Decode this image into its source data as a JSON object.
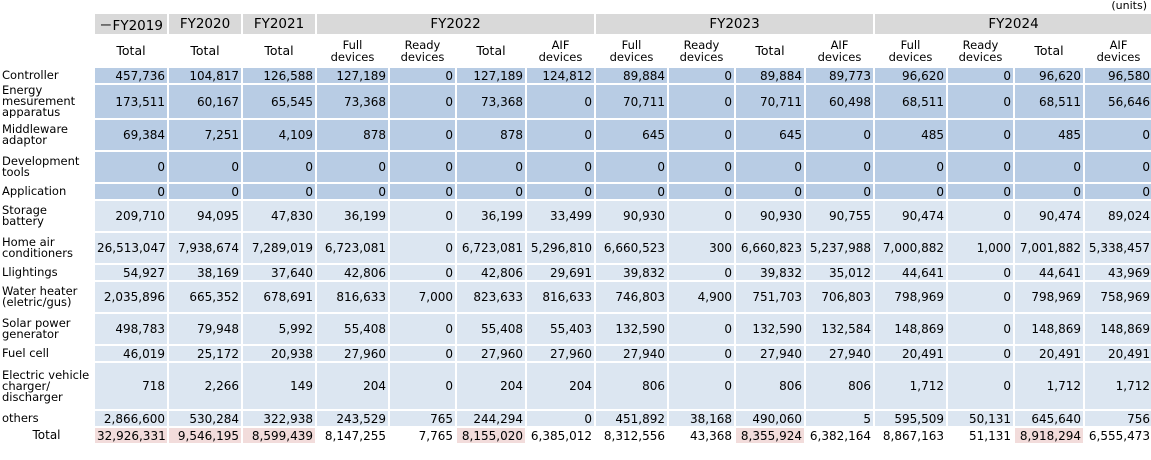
{
  "units_label": "(units)",
  "header": {
    "groups": [
      "－FY2019",
      "FY2020",
      "FY2021",
      "FY2022",
      "FY2023",
      "FY2024"
    ],
    "sub": {
      "total": "Total",
      "full": "Full devices",
      "ready": "Ready devices",
      "aif": "AIF devices"
    }
  },
  "rows": [
    {
      "label": "Controller",
      "values": [
        "457,736",
        "104,817",
        "126,588",
        "127,189",
        "0",
        "127,189",
        "124,812",
        "89,884",
        "0",
        "89,884",
        "89,773",
        "96,620",
        "0",
        "96,620",
        "96,580"
      ]
    },
    {
      "label": "Energy mesurement apparatus",
      "values": [
        "173,511",
        "60,167",
        "65,545",
        "73,368",
        "0",
        "73,368",
        "0",
        "70,711",
        "0",
        "70,711",
        "60,498",
        "68,511",
        "0",
        "68,511",
        "56,646"
      ]
    },
    {
      "label": "Middleware adaptor",
      "values": [
        "69,384",
        "7,251",
        "4,109",
        "878",
        "0",
        "878",
        "0",
        "645",
        "0",
        "645",
        "0",
        "485",
        "0",
        "485",
        "0"
      ]
    },
    {
      "label": "Development tools",
      "values": [
        "0",
        "0",
        "0",
        "0",
        "0",
        "0",
        "0",
        "0",
        "0",
        "0",
        "0",
        "0",
        "0",
        "0",
        "0"
      ]
    },
    {
      "label": "Application",
      "values": [
        "0",
        "0",
        "0",
        "0",
        "0",
        "0",
        "0",
        "0",
        "0",
        "0",
        "0",
        "0",
        "0",
        "0",
        "0"
      ]
    },
    {
      "label": "Storage battery",
      "values": [
        "209,710",
        "94,095",
        "47,830",
        "36,199",
        "0",
        "36,199",
        "33,499",
        "90,930",
        "0",
        "90,930",
        "90,755",
        "90,474",
        "0",
        "90,474",
        "89,024"
      ]
    },
    {
      "label": "Home air conditioners",
      "values": [
        "26,513,047",
        "7,938,674",
        "7,289,019",
        "6,723,081",
        "0",
        "6,723,081",
        "5,296,810",
        "6,660,523",
        "300",
        "6,660,823",
        "5,237,988",
        "7,000,882",
        "1,000",
        "7,001,882",
        "5,338,457"
      ]
    },
    {
      "label": "Llightings",
      "values": [
        "54,927",
        "38,169",
        "37,640",
        "42,806",
        "0",
        "42,806",
        "29,691",
        "39,832",
        "0",
        "39,832",
        "35,012",
        "44,641",
        "0",
        "44,641",
        "43,969"
      ]
    },
    {
      "label": "Water heater (eletric/gus)",
      "values": [
        "2,035,896",
        "665,352",
        "678,691",
        "816,633",
        "7,000",
        "823,633",
        "816,633",
        "746,803",
        "4,900",
        "751,703",
        "706,803",
        "798,969",
        "0",
        "798,969",
        "758,969"
      ]
    },
    {
      "label": "Solar power generator",
      "values": [
        "498,783",
        "79,948",
        "5,992",
        "55,408",
        "0",
        "55,408",
        "55,403",
        "132,590",
        "0",
        "132,590",
        "132,584",
        "148,869",
        "0",
        "148,869",
        "148,869"
      ]
    },
    {
      "label": "Fuel cell",
      "values": [
        "46,019",
        "25,172",
        "20,938",
        "27,960",
        "0",
        "27,960",
        "27,960",
        "27,940",
        "0",
        "27,940",
        "27,940",
        "20,491",
        "0",
        "20,491",
        "20,491"
      ]
    },
    {
      "label": "Electric vehicle charger/ discharger",
      "values": [
        "718",
        "2,266",
        "149",
        "204",
        "0",
        "204",
        "204",
        "806",
        "0",
        "806",
        "806",
        "1,712",
        "0",
        "1,712",
        "1,712"
      ]
    },
    {
      "label": "others",
      "values": [
        "2,866,600",
        "530,284",
        "322,938",
        "243,529",
        "765",
        "244,294",
        "0",
        "451,892",
        "38,168",
        "490,060",
        "5",
        "595,509",
        "50,131",
        "645,640",
        "756"
      ]
    }
  ],
  "total_row": {
    "label": "Total",
    "values": [
      "32,926,331",
      "9,546,195",
      "8,599,439",
      "8,147,255",
      "7,765",
      "8,155,020",
      "6,385,012",
      "8,312,556",
      "43,368",
      "8,355,924",
      "6,382,164",
      "8,867,163",
      "51,131",
      "8,918,294",
      "6,555,473"
    ]
  },
  "colors": {
    "header_gray": "#d9d9d9",
    "row_dark": "#b8cce4",
    "row_light": "#dce6f1",
    "total_highlight": "#f2dcdb"
  }
}
